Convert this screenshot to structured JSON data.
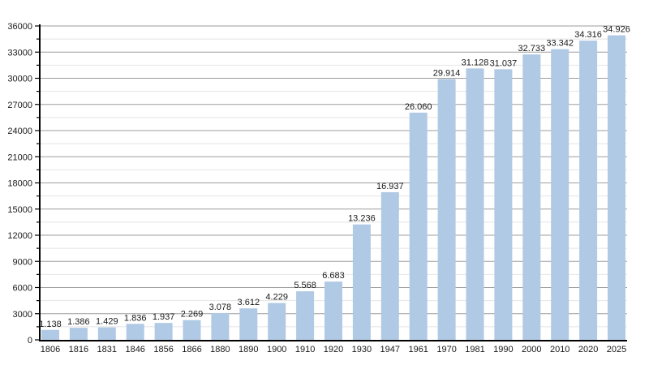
{
  "chart_data": {
    "type": "bar",
    "title": "",
    "xlabel": "",
    "ylabel": "",
    "categories": [
      "1806",
      "1816",
      "1831",
      "1846",
      "1856",
      "1866",
      "1880",
      "1890",
      "1900",
      "1910",
      "1920",
      "1930",
      "1947",
      "1961",
      "1970",
      "1981",
      "1990",
      "2000",
      "2010",
      "2020",
      "2025"
    ],
    "values": [
      1138,
      1386,
      1429,
      1836,
      1937,
      2269,
      3078,
      3612,
      4229,
      5568,
      6683,
      13236,
      16937,
      26060,
      29914,
      31128,
      31037,
      32733,
      33342,
      34316,
      34926
    ],
    "value_labels": [
      "1.138",
      "1.386",
      "1.429",
      "1.836",
      "1.937",
      "2.269",
      "3.078",
      "3.612",
      "4.229",
      "5.568",
      "6.683",
      "13.236",
      "16.937",
      "26.060",
      "29.914",
      "31.128",
      "31.037",
      "32.733",
      "33.342",
      "34.316",
      "34.926"
    ],
    "ylim": [
      0,
      36000
    ],
    "y_major_step": 3000,
    "y_minor_step": 1500,
    "y_tick_labels": [
      "0",
      "3000",
      "6000",
      "9000",
      "12000",
      "15000",
      "18000",
      "21000",
      "24000",
      "27000",
      "30000",
      "33000",
      "36000"
    ],
    "grid": true,
    "legend": "none",
    "colors": {
      "bar": "#b0c9e4",
      "grid_major": "#9e9e9e",
      "grid_minor": "#e4e4e4",
      "axis": "#000000",
      "text": "#1a1a1a",
      "background": "#ffffff"
    }
  }
}
